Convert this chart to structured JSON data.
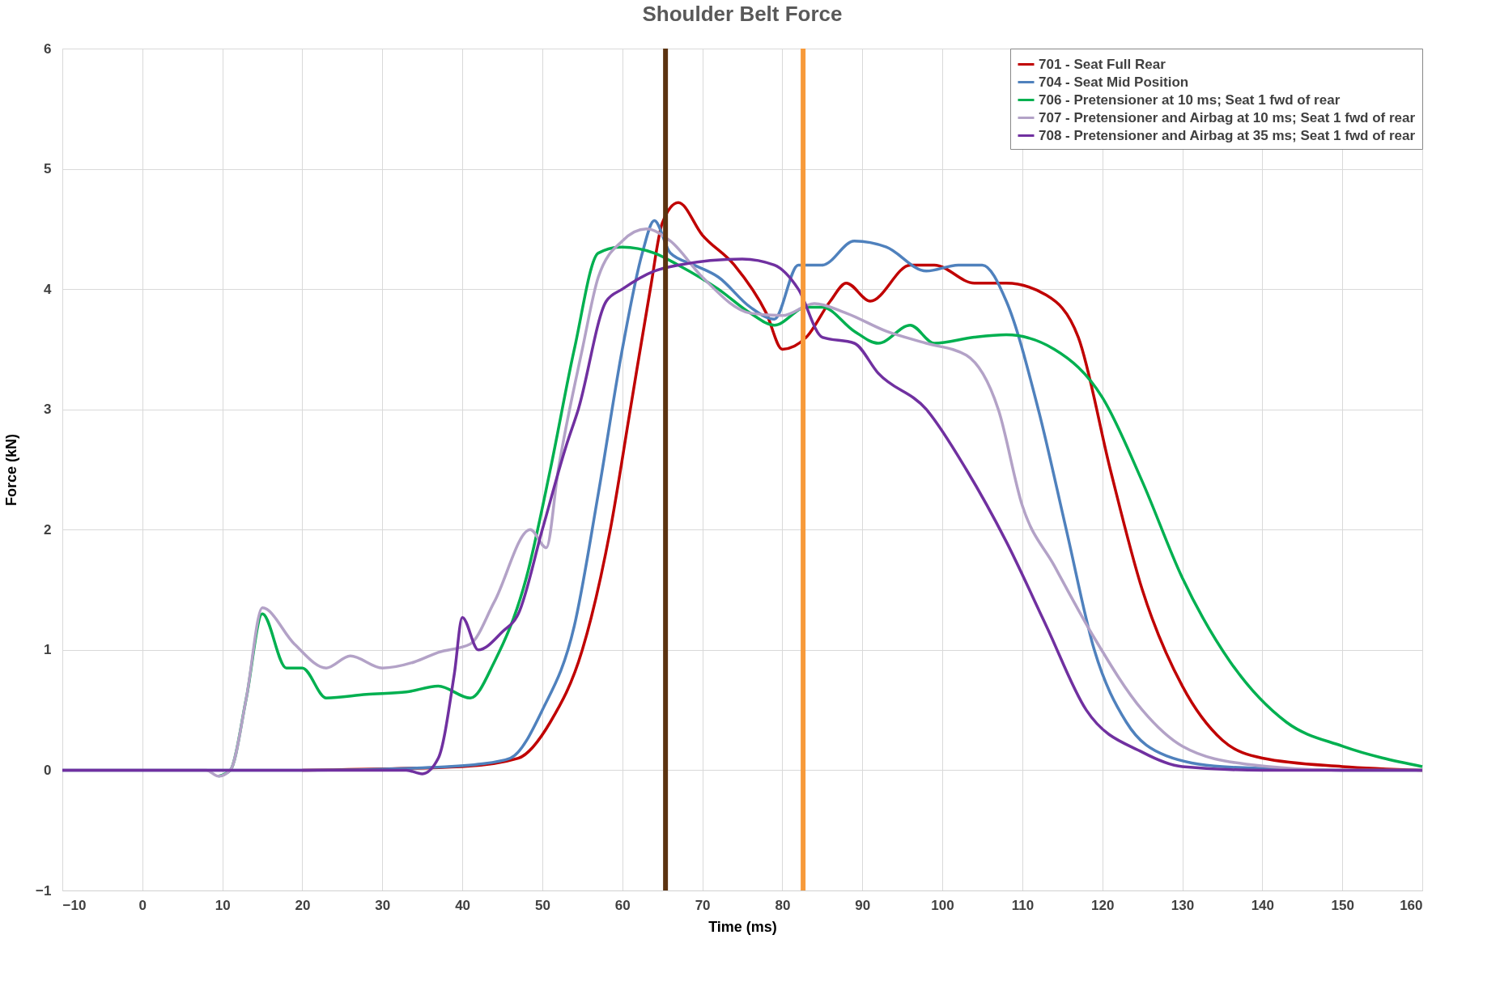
{
  "chart_data": {
    "type": "line",
    "title": "Shoulder Belt Force",
    "xlabel": "Time (ms)",
    "ylabel": "Force (kN)",
    "xlim": [
      -10,
      160
    ],
    "xticks": [
      -10,
      0,
      10,
      20,
      30,
      40,
      50,
      60,
      70,
      80,
      90,
      100,
      110,
      120,
      130,
      140,
      150,
      160
    ],
    "ylim": [
      -1,
      6
    ],
    "yticks": [
      -1,
      0,
      1,
      2,
      3,
      4,
      5,
      6
    ],
    "grid": true,
    "legend": "top right",
    "marker": "none",
    "line_style": "solid",
    "ref_lines": [
      {
        "axis": "x",
        "value": 65.4,
        "color": "#5c3310"
      },
      {
        "axis": "x",
        "value": 82.6,
        "color": "#f79a3a"
      }
    ],
    "series": [
      {
        "name": "701 - Seat Full Rear",
        "color": "#c00000",
        "x": [
          20,
          40,
          47,
          51,
          55,
          58.5,
          61,
          63.5,
          65,
          67,
          70,
          74,
          78,
          80,
          83,
          86,
          88,
          91,
          96,
          99,
          104,
          108,
          113,
          117,
          121,
          125,
          130,
          135,
          140,
          150,
          160
        ],
        "values": [
          0,
          0.03,
          0.1,
          0.4,
          1,
          2,
          3,
          4,
          4.55,
          4.72,
          4.45,
          4.2,
          3.8,
          3.5,
          3.6,
          3.9,
          4.05,
          3.9,
          4.2,
          4.2,
          4.05,
          4.05,
          3.95,
          3.6,
          2.5,
          1.5,
          0.7,
          0.25,
          0.1,
          0.03,
          0
        ]
      },
      {
        "name": "704 - Seat Mid Position",
        "color": "#4f81bd",
        "x": [
          -10,
          0,
          20,
          35,
          42,
          46,
          50,
          54,
          57,
          60,
          62.5,
          64,
          66,
          69,
          72,
          76,
          79,
          82,
          85,
          89,
          93,
          98,
          102,
          105,
          108,
          112,
          115.5,
          119,
          123,
          128,
          135,
          150,
          160
        ],
        "values": [
          0,
          0,
          0,
          0.02,
          0.05,
          0.1,
          0.5,
          1.2,
          2.3,
          3.5,
          4.3,
          4.57,
          4.3,
          4.2,
          4.1,
          3.85,
          3.75,
          4.2,
          4.2,
          4.4,
          4.35,
          4.15,
          4.2,
          4.2,
          3.9,
          3.0,
          2.0,
          1.0,
          0.4,
          0.12,
          0.03,
          0,
          0
        ]
      },
      {
        "name": "706 - Pretensioner at 10 ms; Seat 1 fwd of rear",
        "color": "#00b050",
        "x": [
          9.5,
          11,
          13,
          15,
          18,
          20,
          23,
          28,
          33,
          37,
          41,
          44,
          48,
          51,
          54,
          57,
          60,
          64,
          67,
          72,
          76,
          79,
          83,
          85,
          89,
          92,
          96,
          99,
          104,
          108,
          114,
          120,
          125,
          130,
          136,
          143,
          150,
          160
        ],
        "values": [
          -0.05,
          0,
          0.6,
          1.3,
          0.85,
          0.85,
          0.6,
          0.63,
          0.65,
          0.7,
          0.6,
          0.9,
          1.6,
          2.5,
          3.5,
          4.3,
          4.35,
          4.3,
          4.2,
          4.0,
          3.8,
          3.7,
          3.85,
          3.85,
          3.65,
          3.55,
          3.7,
          3.55,
          3.6,
          3.62,
          3.5,
          3.1,
          2.4,
          1.6,
          0.9,
          0.4,
          0.2,
          0.03
        ]
      },
      {
        "name": "707 - Pretensioner and Airbag at 10 ms; Seat 1 fwd of rear",
        "color": "#b3a2c7",
        "x": [
          -10,
          0,
          8,
          9.5,
          11,
          13,
          15,
          19,
          23,
          26,
          30,
          34,
          37,
          41,
          44,
          48.5,
          50.5,
          52,
          55,
          57,
          60,
          63,
          66,
          70,
          76,
          80,
          84,
          88,
          93,
          98,
          103,
          107,
          110,
          114,
          119,
          125,
          130,
          138,
          150,
          160
        ],
        "values": [
          0,
          0,
          0,
          -0.05,
          0,
          0.6,
          1.35,
          1.05,
          0.85,
          0.95,
          0.85,
          0.9,
          0.98,
          1.05,
          1.4,
          2.0,
          1.85,
          2.5,
          3.5,
          4.1,
          4.4,
          4.5,
          4.4,
          4.1,
          3.8,
          3.78,
          3.88,
          3.8,
          3.65,
          3.55,
          3.45,
          3.0,
          2.2,
          1.7,
          1.1,
          0.5,
          0.2,
          0.05,
          0,
          0
        ]
      },
      {
        "name": "708 - Pretensioner and Airbag at 35 ms; Seat 1 fwd of rear",
        "color": "#7030a0",
        "x": [
          -10,
          0,
          20,
          33,
          35,
          37,
          39,
          40,
          42,
          45,
          47,
          50,
          53,
          54.5,
          58,
          60,
          64,
          67,
          75,
          79,
          82,
          85,
          89,
          92,
          98,
          103,
          108,
          113,
          118,
          125,
          130,
          140,
          160
        ],
        "values": [
          0,
          0,
          0,
          0,
          -0.03,
          0.1,
          0.8,
          1.27,
          1.0,
          1.15,
          1.3,
          2.0,
          2.7,
          3.0,
          3.9,
          4.0,
          4.15,
          4.2,
          4.25,
          4.2,
          4.0,
          3.6,
          3.55,
          3.3,
          3.0,
          2.5,
          1.9,
          1.2,
          0.5,
          0.15,
          0.03,
          0,
          0
        ]
      }
    ]
  }
}
